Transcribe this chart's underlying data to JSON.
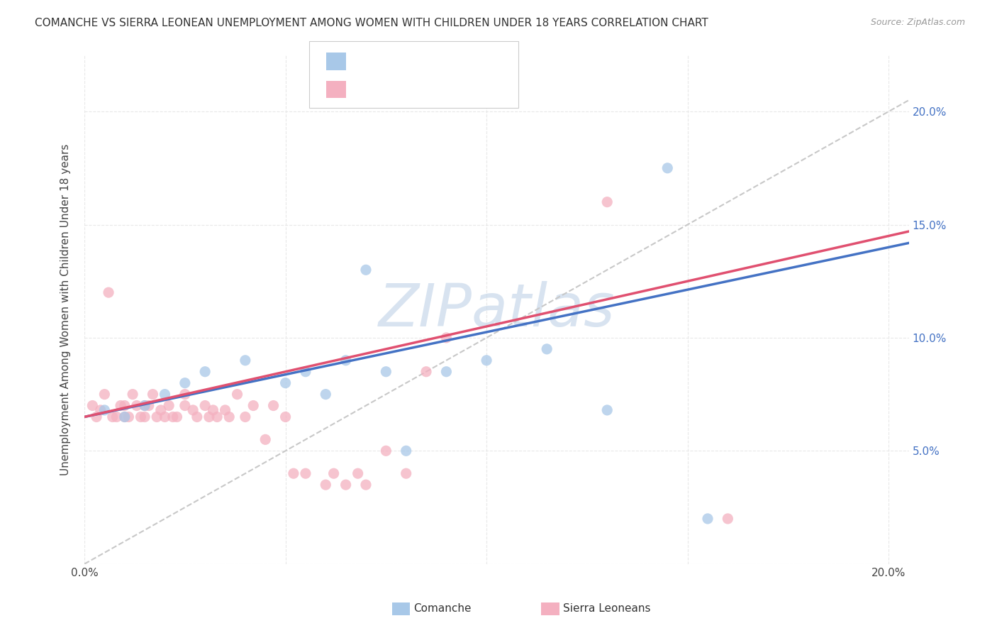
{
  "title": "COMANCHE VS SIERRA LEONEAN UNEMPLOYMENT AMONG WOMEN WITH CHILDREN UNDER 18 YEARS CORRELATION CHART",
  "source": "Source: ZipAtlas.com",
  "ylabel": "Unemployment Among Women with Children Under 18 years",
  "comanche_color": "#a8c8e8",
  "sierra_color": "#f4b0c0",
  "trend_comanche_color": "#4472c4",
  "trend_sierra_color": "#e05070",
  "ref_line_color": "#c8c8c8",
  "watermark_color": "#c8d8ea",
  "watermark_text": "ZIPatlas",
  "number_color": "#4472c4",
  "background_color": "#ffffff",
  "grid_color": "#e8e8e8",
  "comanche_x": [
    0.005,
    0.01,
    0.015,
    0.02,
    0.025,
    0.03,
    0.04,
    0.05,
    0.055,
    0.06,
    0.065,
    0.07,
    0.075,
    0.08,
    0.09,
    0.1,
    0.115,
    0.13,
    0.145,
    0.155
  ],
  "comanche_y": [
    0.068,
    0.065,
    0.07,
    0.075,
    0.08,
    0.085,
    0.09,
    0.08,
    0.085,
    0.075,
    0.09,
    0.13,
    0.085,
    0.05,
    0.085,
    0.09,
    0.095,
    0.068,
    0.175,
    0.02
  ],
  "sierra_x": [
    0.002,
    0.003,
    0.004,
    0.005,
    0.006,
    0.007,
    0.008,
    0.009,
    0.01,
    0.01,
    0.011,
    0.012,
    0.013,
    0.014,
    0.015,
    0.015,
    0.016,
    0.017,
    0.018,
    0.019,
    0.02,
    0.021,
    0.022,
    0.023,
    0.025,
    0.025,
    0.027,
    0.028,
    0.03,
    0.031,
    0.032,
    0.033,
    0.035,
    0.036,
    0.038,
    0.04,
    0.042,
    0.045,
    0.047,
    0.05,
    0.052,
    0.055,
    0.06,
    0.062,
    0.065,
    0.068,
    0.07,
    0.075,
    0.08,
    0.085,
    0.09,
    0.13,
    0.16
  ],
  "sierra_y": [
    0.07,
    0.065,
    0.068,
    0.075,
    0.12,
    0.065,
    0.065,
    0.07,
    0.065,
    0.07,
    0.065,
    0.075,
    0.07,
    0.065,
    0.065,
    0.07,
    0.07,
    0.075,
    0.065,
    0.068,
    0.065,
    0.07,
    0.065,
    0.065,
    0.07,
    0.075,
    0.068,
    0.065,
    0.07,
    0.065,
    0.068,
    0.065,
    0.068,
    0.065,
    0.075,
    0.065,
    0.07,
    0.055,
    0.07,
    0.065,
    0.04,
    0.04,
    0.035,
    0.04,
    0.035,
    0.04,
    0.035,
    0.05,
    0.04,
    0.085,
    0.1,
    0.16,
    0.02
  ],
  "xlim": [
    0.0,
    0.205
  ],
  "ylim": [
    0.0,
    0.225
  ],
  "xtick_positions": [
    0.0,
    0.05,
    0.1,
    0.15,
    0.2
  ],
  "xtick_labels": [
    "0.0%",
    "",
    "",
    "",
    "20.0%"
  ],
  "ytick_positions": [
    0.0,
    0.05,
    0.1,
    0.15,
    0.2
  ],
  "ytick_labels_right": [
    "",
    "5.0%",
    "10.0%",
    "15.0%",
    "20.0%"
  ]
}
